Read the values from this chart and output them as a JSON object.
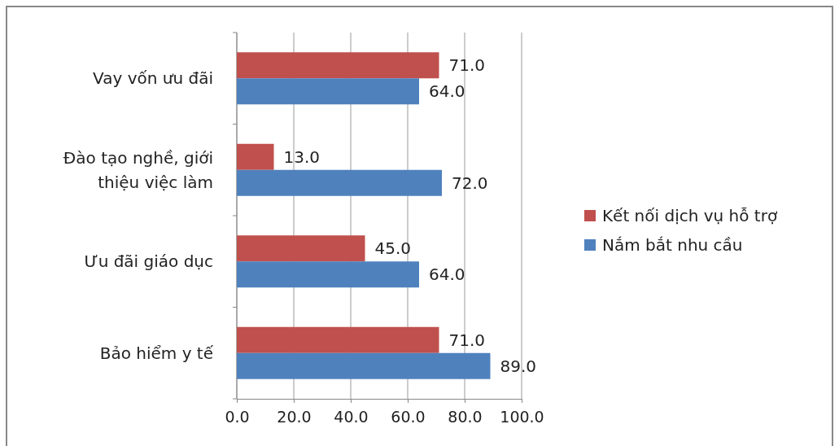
{
  "chart_data": {
    "type": "bar",
    "orientation": "horizontal",
    "categories": [
      "Vay vốn ưu đãi",
      "Đào tạo nghề, giới thiệu việc làm",
      "Ưu đãi giáo dục",
      "Bảo hiểm y tế"
    ],
    "series": [
      {
        "name": "Kết nối dịch vụ hỗ trợ",
        "color": "#c0504d",
        "values": [
          71.0,
          13.0,
          45.0,
          71.0
        ],
        "value_labels": [
          "71.0",
          "13.0",
          "45.0",
          "71.0"
        ]
      },
      {
        "name": "Nắm bắt nhu cầu",
        "color": "#4f81bd",
        "values": [
          64.0,
          72.0,
          64.0,
          89.0
        ],
        "value_labels": [
          "64.0",
          "72.0",
          "64.0",
          "89.0"
        ]
      }
    ],
    "xlim": [
      0,
      100
    ],
    "xticks": [
      {
        "value": 0,
        "label": "0.0"
      },
      {
        "value": 20,
        "label": "20.0"
      },
      {
        "value": 40,
        "label": "40.0"
      },
      {
        "value": 60,
        "label": "60.0"
      },
      {
        "value": 80,
        "label": "80.0"
      },
      {
        "value": 100,
        "label": "100.0"
      }
    ],
    "grid": "x",
    "legend": "right"
  }
}
